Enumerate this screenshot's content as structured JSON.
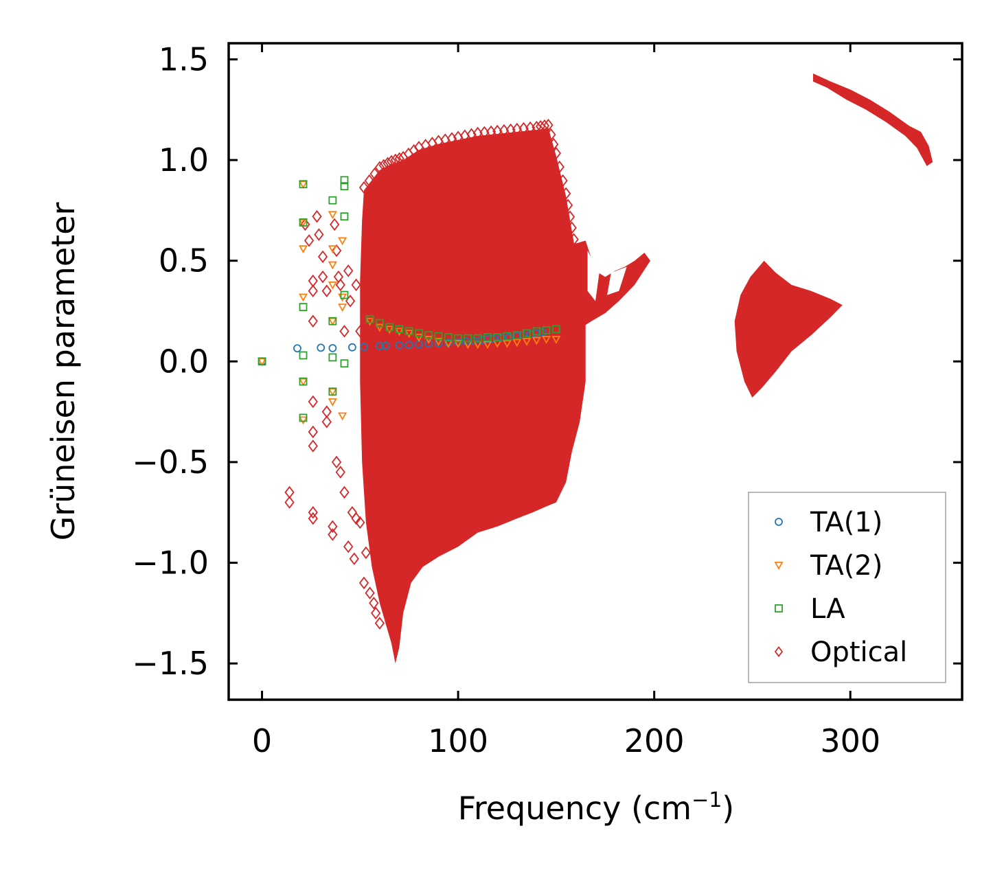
{
  "chart_data": {
    "type": "scatter",
    "title": "",
    "xlabel": "Frequency (cm",
    "xlabel_sup": "−1",
    "xlabel_close": ")",
    "ylabel": "Grüneisen parameter",
    "xlim": [
      -17,
      357
    ],
    "ylim": [
      -1.68,
      1.58
    ],
    "x_ticks": [
      0,
      100,
      200,
      300
    ],
    "x_tick_labels": [
      "0",
      "100",
      "200",
      "300"
    ],
    "y_ticks": [
      -1.5,
      -1.0,
      -0.5,
      0.0,
      0.5,
      1.0,
      1.5
    ],
    "y_tick_labels": [
      "−1.5",
      "−1.0",
      "−0.5",
      "0.0",
      "0.5",
      "1.0",
      "1.5"
    ],
    "legend_position": "lower-right",
    "series": [
      {
        "name": "TA(1)",
        "marker": "circle",
        "color": "#1f77b4",
        "points": [
          [
            0,
            0.0
          ],
          [
            18,
            0.065
          ],
          [
            30,
            0.068
          ],
          [
            36,
            0.066
          ],
          [
            46,
            0.07
          ],
          [
            52,
            0.072
          ],
          [
            60,
            0.076
          ],
          [
            63,
            0.078
          ],
          [
            70,
            0.08
          ],
          [
            75,
            0.082
          ],
          [
            80,
            0.085
          ],
          [
            85,
            0.088
          ],
          [
            90,
            0.09
          ],
          [
            95,
            0.092
          ],
          [
            100,
            0.095
          ],
          [
            104,
            0.1
          ],
          [
            108,
            0.102
          ],
          [
            112,
            0.105
          ],
          [
            115,
            0.11
          ],
          [
            118,
            0.112
          ],
          [
            122,
            0.118
          ],
          [
            126,
            0.12
          ],
          [
            130,
            0.125
          ],
          [
            133,
            0.13
          ],
          [
            137,
            0.135
          ],
          [
            140,
            0.14
          ],
          [
            143,
            0.145
          ]
        ]
      },
      {
        "name": "TA(2)",
        "marker": "triangle_down",
        "color": "#ff7f0e",
        "points": [
          [
            0,
            0.0
          ],
          [
            21,
            0.88
          ],
          [
            21,
            0.69
          ],
          [
            21,
            0.56
          ],
          [
            21,
            0.32
          ],
          [
            21,
            -0.1
          ],
          [
            21,
            -0.29
          ],
          [
            36,
            0.73
          ],
          [
            36,
            0.56
          ],
          [
            36,
            0.48
          ],
          [
            36,
            0.38
          ],
          [
            36,
            0.2
          ],
          [
            36,
            -0.15
          ],
          [
            36,
            -0.2
          ],
          [
            41,
            0.6
          ],
          [
            41,
            0.32
          ],
          [
            41,
            0.27
          ],
          [
            41,
            -0.27
          ],
          [
            55,
            0.2
          ],
          [
            60,
            0.17
          ],
          [
            65,
            0.16
          ],
          [
            70,
            0.15
          ],
          [
            75,
            0.14
          ],
          [
            80,
            0.12
          ],
          [
            85,
            0.11
          ],
          [
            90,
            0.1
          ],
          [
            95,
            0.09
          ],
          [
            100,
            0.09
          ],
          [
            105,
            0.085
          ],
          [
            110,
            0.085
          ],
          [
            115,
            0.085
          ],
          [
            120,
            0.09
          ],
          [
            125,
            0.09
          ],
          [
            130,
            0.095
          ],
          [
            135,
            0.1
          ],
          [
            140,
            0.105
          ],
          [
            145,
            0.11
          ],
          [
            150,
            0.11
          ]
        ]
      },
      {
        "name": "LA",
        "marker": "square",
        "color": "#2ca02c",
        "points": [
          [
            0,
            0.0
          ],
          [
            21,
            0.88
          ],
          [
            21,
            0.69
          ],
          [
            21,
            0.27
          ],
          [
            21,
            0.03
          ],
          [
            21,
            -0.1
          ],
          [
            21,
            -0.28
          ],
          [
            36,
            0.8
          ],
          [
            36,
            0.2
          ],
          [
            36,
            0.02
          ],
          [
            36,
            -0.15
          ],
          [
            42,
            0.9
          ],
          [
            42,
            0.87
          ],
          [
            42,
            0.72
          ],
          [
            42,
            0.33
          ],
          [
            42,
            -0.01
          ],
          [
            55,
            0.21
          ],
          [
            60,
            0.19
          ],
          [
            65,
            0.17
          ],
          [
            70,
            0.16
          ],
          [
            75,
            0.15
          ],
          [
            80,
            0.14
          ],
          [
            85,
            0.13
          ],
          [
            90,
            0.125
          ],
          [
            95,
            0.12
          ],
          [
            100,
            0.115
          ],
          [
            105,
            0.115
          ],
          [
            110,
            0.115
          ],
          [
            115,
            0.12
          ],
          [
            120,
            0.12
          ],
          [
            125,
            0.125
          ],
          [
            130,
            0.13
          ],
          [
            135,
            0.14
          ],
          [
            140,
            0.15
          ],
          [
            145,
            0.155
          ],
          [
            150,
            0.16
          ]
        ]
      },
      {
        "name": "Optical",
        "marker": "diamond",
        "color": "#d62728",
        "sparse_points": [
          [
            14,
            -0.65
          ],
          [
            14,
            -0.7
          ],
          [
            22,
            0.68
          ],
          [
            24,
            0.6
          ],
          [
            26,
            0.4
          ],
          [
            26,
            0.35
          ],
          [
            26,
            0.2
          ],
          [
            26,
            -0.2
          ],
          [
            26,
            -0.35
          ],
          [
            26,
            -0.42
          ],
          [
            26,
            -0.75
          ],
          [
            26,
            -0.78
          ],
          [
            28,
            0.72
          ],
          [
            29,
            0.63
          ],
          [
            31,
            0.52
          ],
          [
            31,
            0.42
          ],
          [
            33,
            0.35
          ],
          [
            33,
            -0.25
          ],
          [
            33,
            -0.3
          ],
          [
            36,
            -0.82
          ],
          [
            36,
            -0.86
          ],
          [
            37,
            0.68
          ],
          [
            38,
            0.55
          ],
          [
            38,
            -0.5
          ],
          [
            39,
            0.42
          ],
          [
            40,
            0.38
          ],
          [
            40,
            -0.55
          ],
          [
            42,
            0.15
          ],
          [
            42,
            -0.65
          ],
          [
            44,
            0.45
          ],
          [
            44,
            -0.92
          ],
          [
            45,
            0.3
          ],
          [
            46,
            -0.75
          ],
          [
            47,
            -0.98
          ],
          [
            48,
            0.38
          ],
          [
            48,
            -0.78
          ],
          [
            50,
            0.15
          ],
          [
            50,
            -0.8
          ],
          [
            52,
            -1.1
          ],
          [
            53,
            -0.95
          ],
          [
            55,
            -1.15
          ],
          [
            57,
            -1.2
          ],
          [
            58,
            -1.25
          ],
          [
            60,
            -1.3
          ]
        ],
        "dense_regions": [
          {
            "label": "band 55-160",
            "x_range": [
              55,
              165
            ],
            "y_band": "-1.5 to 1.15"
          },
          {
            "label": "band 160-198",
            "x_range": [
              160,
              198
            ],
            "y_band": "0.15 to 0.55"
          },
          {
            "label": "band 240-296",
            "x_range": [
              240,
              296
            ],
            "y_band": "-0.18 to 0.5"
          },
          {
            "label": "band 280-342",
            "x_range": [
              280,
              342
            ],
            "y_band": "0.97 to 1.42"
          }
        ]
      }
    ]
  }
}
